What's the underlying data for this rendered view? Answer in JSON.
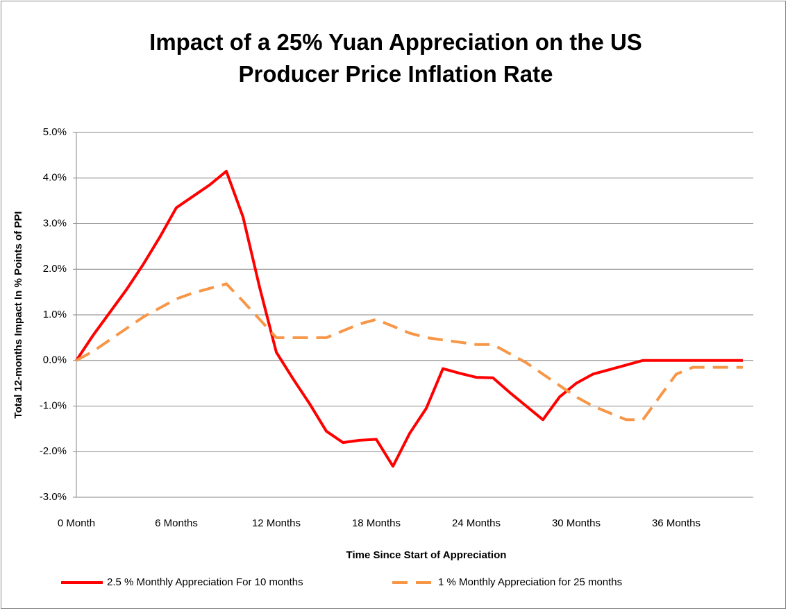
{
  "chart_data": {
    "type": "line",
    "title": "Impact of a 25% Yuan Appreciation on the US Producer Price Inflation Rate",
    "x_label": "Time Since Start of Appreciation",
    "y_label": "Total 12-months Impact In % Points of PPI",
    "categories": [
      "0 Month",
      null,
      null,
      null,
      null,
      null,
      "6 Months",
      null,
      null,
      null,
      null,
      null,
      "12 Months",
      null,
      null,
      null,
      null,
      null,
      "18 Months",
      null,
      null,
      null,
      null,
      null,
      "24 Months",
      null,
      null,
      null,
      null,
      null,
      "30 Months",
      null,
      null,
      null,
      null,
      null,
      "36 Months",
      null,
      null,
      null,
      null
    ],
    "series": [
      {
        "name": "2.5 % Monthly Appreciation For 10 months",
        "color": "#ff0000",
        "dashed": false,
        "values": [
          0,
          0.55,
          1.05,
          1.55,
          2.1,
          2.7,
          3.35,
          3.6,
          3.85,
          4.15,
          3.15,
          1.6,
          0.18,
          -0.4,
          -0.95,
          -1.55,
          -1.8,
          -1.75,
          -1.73,
          -2.32,
          -1.6,
          -1.05,
          -0.18,
          -0.28,
          -0.37,
          -0.38,
          -0.7,
          -1.0,
          -1.3,
          -0.8,
          -0.5,
          -0.3,
          -0.2,
          -0.1,
          0,
          0,
          0,
          0,
          0,
          0,
          0
        ]
      },
      {
        "name": "1 % Monthly Appreciation for 25 months",
        "color": "#f79646",
        "dashed": true,
        "values": [
          0,
          0.2,
          0.45,
          0.7,
          0.95,
          1.15,
          1.35,
          1.48,
          1.58,
          1.68,
          1.3,
          0.9,
          0.5,
          0.5,
          0.5,
          0.5,
          0.65,
          0.8,
          0.9,
          0.75,
          0.6,
          0.5,
          0.45,
          0.4,
          0.35,
          0.35,
          0.15,
          -0.05,
          -0.3,
          -0.55,
          -0.8,
          -1.0,
          -1.15,
          -1.3,
          -1.3,
          -0.8,
          -0.3,
          -0.15,
          -0.15,
          -0.15,
          -0.15
        ]
      }
    ],
    "ylim": [
      -3,
      5
    ],
    "yticks": [
      {
        "value": -3,
        "label": "-3.0%"
      },
      {
        "value": -2,
        "label": "-2.0%"
      },
      {
        "value": -1,
        "label": "-1.0%"
      },
      {
        "value": 0,
        "label": "0.0%"
      },
      {
        "value": 1,
        "label": "1.0%"
      },
      {
        "value": 2,
        "label": "2.0%"
      },
      {
        "value": 3,
        "label": "3.0%"
      },
      {
        "value": 4,
        "label": "4.0%"
      },
      {
        "value": 5,
        "label": "5.0%"
      }
    ],
    "grid": true,
    "legend": "bottom"
  }
}
